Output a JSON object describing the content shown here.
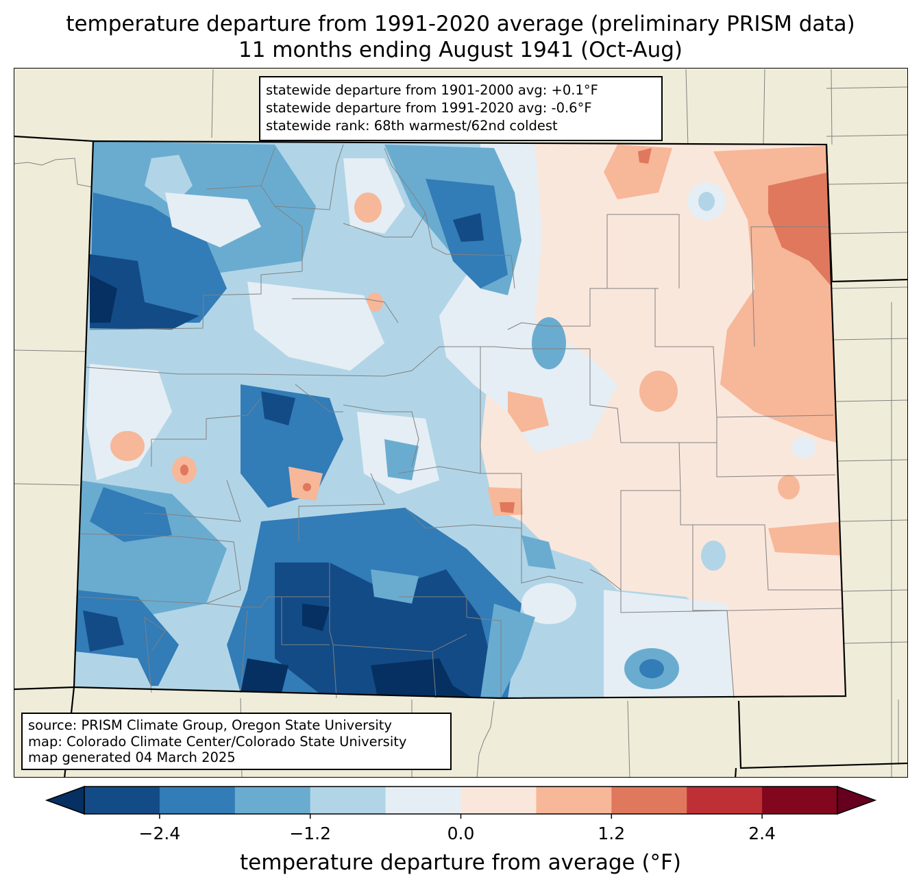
{
  "title": {
    "line1": "temperature departure from 1991-2020 average (preliminary PRISM data)",
    "line2": "11 months ending August 1941 (Oct-Aug)"
  },
  "stats": {
    "line1": "statewide departure from 1901-2000 avg: +0.1°F",
    "line2": "statewide departure from 1991-2020 avg: -0.6°F",
    "line3": "statewide rank: 68th warmest/62nd coldest"
  },
  "source": {
    "line1": "source: PRISM Climate Group, Oregon State University",
    "line2": "map: Colorado Climate Center/Colorado State University",
    "line3": "map generated 04 March 2025"
  },
  "colorbar": {
    "label": "temperature departure from average (°F)",
    "ticks": [
      "−2.4",
      "−1.2",
      "0.0",
      "1.2",
      "2.4"
    ],
    "colors": [
      "#053061",
      "#134b87",
      "#327cb7",
      "#6aacd0",
      "#b1d5e7",
      "#e5eef4",
      "#fae7dc",
      "#f7b799",
      "#e0785d",
      "#be3036",
      "#82061d",
      "#67001f"
    ],
    "land_color": "#efedd9"
  }
}
